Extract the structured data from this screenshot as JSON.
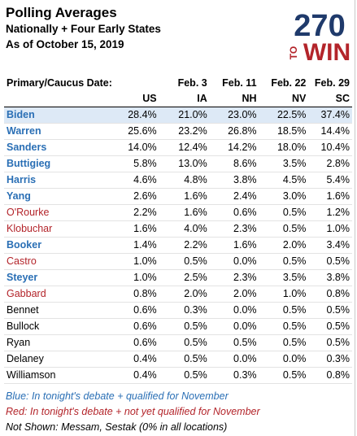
{
  "header": {
    "title": "Polling Averages",
    "subtitle1": "Nationally + Four Early States",
    "subtitle2": "As of October 15, 2019"
  },
  "logo": {
    "number": "270",
    "to": "TO",
    "win": "WIN",
    "colors": {
      "red": "#b3242a",
      "navy": "#1f3a6b"
    }
  },
  "table": {
    "header_row1": [
      "Primary/Caucus Date:",
      "",
      "Feb. 3",
      "Feb. 11",
      "Feb. 22",
      "Feb. 29"
    ],
    "header_row2": [
      "",
      "US",
      "IA",
      "NH",
      "NV",
      "SC"
    ],
    "rows": [
      {
        "name": "Biden",
        "color": "blue",
        "values": [
          "28.4%",
          "21.0%",
          "23.0%",
          "22.5%",
          "37.4%"
        ]
      },
      {
        "name": "Warren",
        "color": "blue",
        "values": [
          "25.6%",
          "23.2%",
          "26.8%",
          "18.5%",
          "14.4%"
        ]
      },
      {
        "name": "Sanders",
        "color": "blue",
        "values": [
          "14.0%",
          "12.4%",
          "14.2%",
          "18.0%",
          "10.4%"
        ]
      },
      {
        "name": "Buttigieg",
        "color": "blue",
        "values": [
          "5.8%",
          "13.0%",
          "8.6%",
          "3.5%",
          "2.8%"
        ]
      },
      {
        "name": "Harris",
        "color": "blue",
        "values": [
          "4.6%",
          "4.8%",
          "3.8%",
          "4.5%",
          "5.4%"
        ]
      },
      {
        "name": "Yang",
        "color": "blue",
        "values": [
          "2.6%",
          "1.6%",
          "2.4%",
          "3.0%",
          "1.6%"
        ]
      },
      {
        "name": "O'Rourke",
        "color": "red",
        "values": [
          "2.2%",
          "1.6%",
          "0.6%",
          "0.5%",
          "1.2%"
        ]
      },
      {
        "name": "Klobuchar",
        "color": "red",
        "values": [
          "1.6%",
          "4.0%",
          "2.3%",
          "0.5%",
          "1.0%"
        ]
      },
      {
        "name": "Booker",
        "color": "blue",
        "values": [
          "1.4%",
          "2.2%",
          "1.6%",
          "2.0%",
          "3.4%"
        ]
      },
      {
        "name": "Castro",
        "color": "red",
        "values": [
          "1.0%",
          "0.5%",
          "0.0%",
          "0.5%",
          "0.5%"
        ]
      },
      {
        "name": "Steyer",
        "color": "blue",
        "values": [
          "1.0%",
          "2.5%",
          "2.3%",
          "3.5%",
          "3.8%"
        ]
      },
      {
        "name": "Gabbard",
        "color": "red",
        "values": [
          "0.8%",
          "2.0%",
          "2.0%",
          "1.0%",
          "0.8%"
        ]
      },
      {
        "name": "Bennet",
        "color": "black",
        "values": [
          "0.6%",
          "0.3%",
          "0.0%",
          "0.5%",
          "0.5%"
        ]
      },
      {
        "name": "Bullock",
        "color": "black",
        "values": [
          "0.6%",
          "0.5%",
          "0.0%",
          "0.5%",
          "0.5%"
        ]
      },
      {
        "name": "Ryan",
        "color": "black",
        "values": [
          "0.6%",
          "0.5%",
          "0.5%",
          "0.5%",
          "0.5%"
        ]
      },
      {
        "name": "Delaney",
        "color": "black",
        "values": [
          "0.4%",
          "0.5%",
          "0.0%",
          "0.0%",
          "0.3%"
        ]
      },
      {
        "name": "Williamson",
        "color": "black",
        "values": [
          "0.4%",
          "0.5%",
          "0.3%",
          "0.5%",
          "0.8%"
        ]
      }
    ]
  },
  "footnotes": {
    "blue": "Blue:  In tonight's debate + qualified for November",
    "red": "Red:  In tonight's debate + not yet qualified for November",
    "not_shown": "Not Shown:  Messam, Sestak (0% in all locations)"
  }
}
